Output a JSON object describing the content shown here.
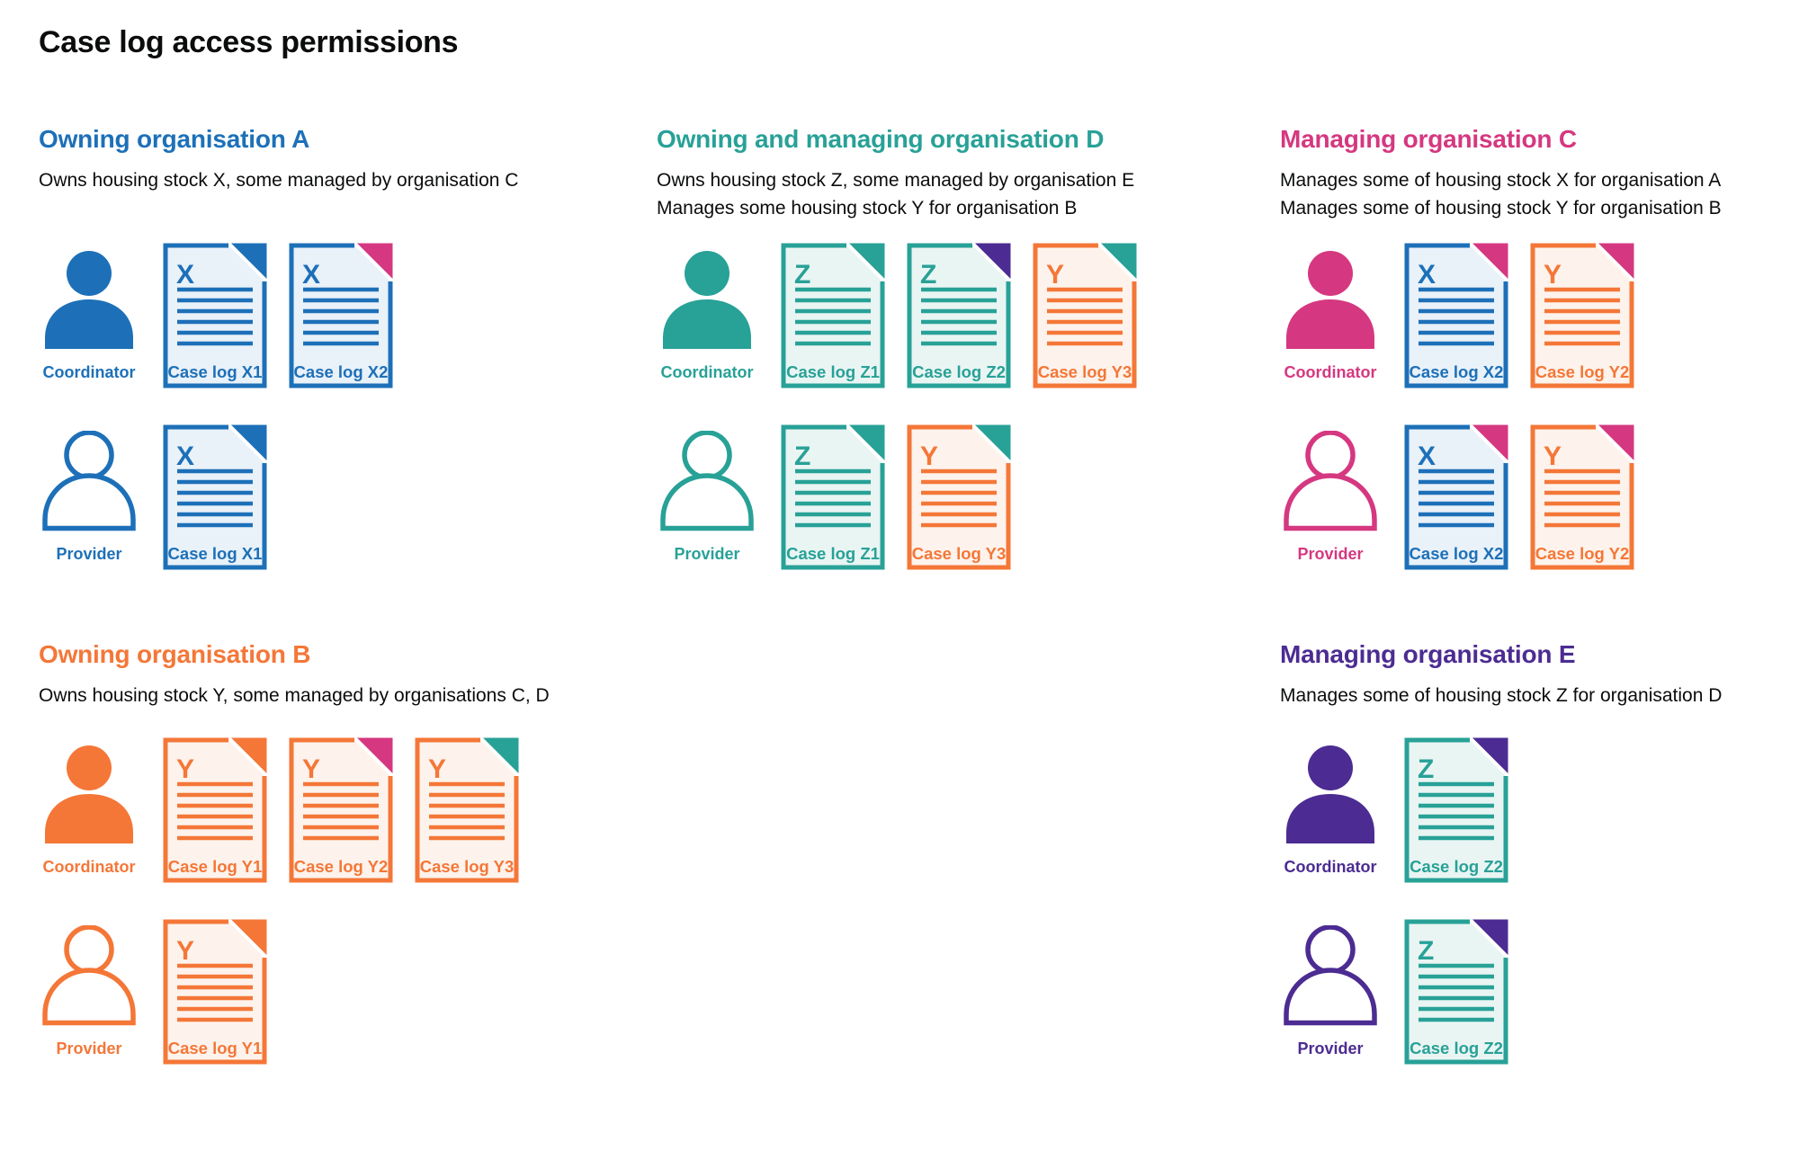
{
  "page": {
    "title": "Case log access permissions"
  },
  "colors": {
    "blue": "#1d70b8",
    "teal": "#28a197",
    "pink": "#d53880",
    "orange": "#f47738",
    "purple": "#4c2c92",
    "text": "#0b0c0c",
    "doc_fill_blue": "#e9f1f9",
    "doc_fill_teal": "#e9f5f3",
    "doc_fill_orange": "#fdf3ec"
  },
  "sections": [
    {
      "id": "a",
      "title": "Owning organisation A",
      "color": "blue",
      "description_lines": [
        "Owns housing stock X, some managed by organisation C"
      ],
      "rows": [
        {
          "role": "Coordinator",
          "person": "filled",
          "documents": [
            {
              "label": "Case log X1",
              "letter": "X",
              "color": "blue",
              "corner": "blue"
            },
            {
              "label": "Case log X2",
              "letter": "X",
              "color": "blue",
              "corner": "pink"
            }
          ]
        },
        {
          "role": "Provider",
          "person": "outline",
          "documents": [
            {
              "label": "Case log X1",
              "letter": "X",
              "color": "blue",
              "corner": "blue"
            }
          ]
        }
      ]
    },
    {
      "id": "d",
      "title": "Owning and managing organisation D",
      "color": "teal",
      "description_lines": [
        "Owns housing stock Z, some managed by organisation E",
        "Manages some housing stock Y for organisation B"
      ],
      "rows": [
        {
          "role": "Coordinator",
          "person": "filled",
          "documents": [
            {
              "label": "Case log Z1",
              "letter": "Z",
              "color": "teal",
              "corner": "teal"
            },
            {
              "label": "Case log Z2",
              "letter": "Z",
              "color": "teal",
              "corner": "purple"
            },
            {
              "label": "Case log Y3",
              "letter": "Y",
              "color": "orange",
              "corner": "teal"
            }
          ]
        },
        {
          "role": "Provider",
          "person": "outline",
          "documents": [
            {
              "label": "Case log Z1",
              "letter": "Z",
              "color": "teal",
              "corner": "teal"
            },
            {
              "label": "Case log Y3",
              "letter": "Y",
              "color": "orange",
              "corner": "teal"
            }
          ]
        }
      ]
    },
    {
      "id": "c",
      "title": "Managing organisation C",
      "color": "pink",
      "description_lines": [
        "Manages some of housing stock X for organisation A",
        "Manages some of housing stock Y for organisation B"
      ],
      "rows": [
        {
          "role": "Coordinator",
          "person": "filled",
          "documents": [
            {
              "label": "Case log X2",
              "letter": "X",
              "color": "blue",
              "corner": "pink"
            },
            {
              "label": "Case log Y2",
              "letter": "Y",
              "color": "orange",
              "corner": "pink"
            }
          ]
        },
        {
          "role": "Provider",
          "person": "outline",
          "documents": [
            {
              "label": "Case log X2",
              "letter": "X",
              "color": "blue",
              "corner": "pink"
            },
            {
              "label": "Case log Y2",
              "letter": "Y",
              "color": "orange",
              "corner": "pink"
            }
          ]
        }
      ]
    },
    {
      "id": "b",
      "title": "Owning organisation B",
      "color": "orange",
      "description_lines": [
        "Owns housing stock Y, some managed by organisations C, D"
      ],
      "rows": [
        {
          "role": "Coordinator",
          "person": "filled",
          "documents": [
            {
              "label": "Case log Y1",
              "letter": "Y",
              "color": "orange",
              "corner": "orange"
            },
            {
              "label": "Case log Y2",
              "letter": "Y",
              "color": "orange",
              "corner": "pink"
            },
            {
              "label": "Case log Y3",
              "letter": "Y",
              "color": "orange",
              "corner": "teal"
            }
          ]
        },
        {
          "role": "Provider",
          "person": "outline",
          "documents": [
            {
              "label": "Case log Y1",
              "letter": "Y",
              "color": "orange",
              "corner": "orange"
            }
          ]
        }
      ]
    },
    {
      "id": "e",
      "title": "Managing organisation E",
      "color": "purple",
      "description_lines": [
        "Manages some of housing stock Z for organisation D"
      ],
      "rows": [
        {
          "role": "Coordinator",
          "person": "filled",
          "documents": [
            {
              "label": "Case log Z2",
              "letter": "Z",
              "color": "teal",
              "corner": "purple"
            }
          ]
        },
        {
          "role": "Provider",
          "person": "outline",
          "documents": [
            {
              "label": "Case log Z2",
              "letter": "Z",
              "color": "teal",
              "corner": "purple"
            }
          ]
        }
      ]
    }
  ]
}
